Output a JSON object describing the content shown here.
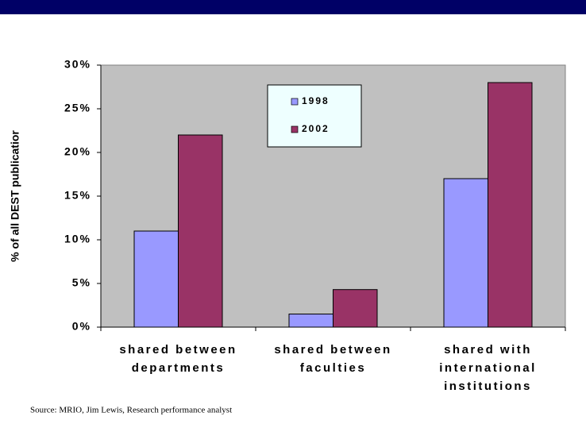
{
  "chart_data": {
    "type": "bar",
    "y_label": "% of all DEST publicatior",
    "source": "Source: MRIO, Jim Lewis, Research performance analyst",
    "categories": [
      [
        "shared between",
        "departments"
      ],
      [
        "shared between",
        "faculties"
      ],
      [
        "shared with",
        "international",
        "institutions"
      ]
    ],
    "series": [
      {
        "name": "1998",
        "color": "#9999ff",
        "values": [
          11,
          1.5,
          17
        ]
      },
      {
        "name": "2002",
        "color": "#993366",
        "values": [
          22,
          4.3,
          28
        ]
      }
    ],
    "ylim": [
      0,
      30
    ],
    "yticks": [
      {
        "value": 0,
        "label": "0%"
      },
      {
        "value": 5,
        "label": "5%"
      },
      {
        "value": 10,
        "label": "10%"
      },
      {
        "value": 15,
        "label": "15%"
      },
      {
        "value": 20,
        "label": "20%"
      },
      {
        "value": 25,
        "label": "25%"
      },
      {
        "value": 30,
        "label": "30%"
      }
    ],
    "plot_background": "#c0c0c0"
  }
}
